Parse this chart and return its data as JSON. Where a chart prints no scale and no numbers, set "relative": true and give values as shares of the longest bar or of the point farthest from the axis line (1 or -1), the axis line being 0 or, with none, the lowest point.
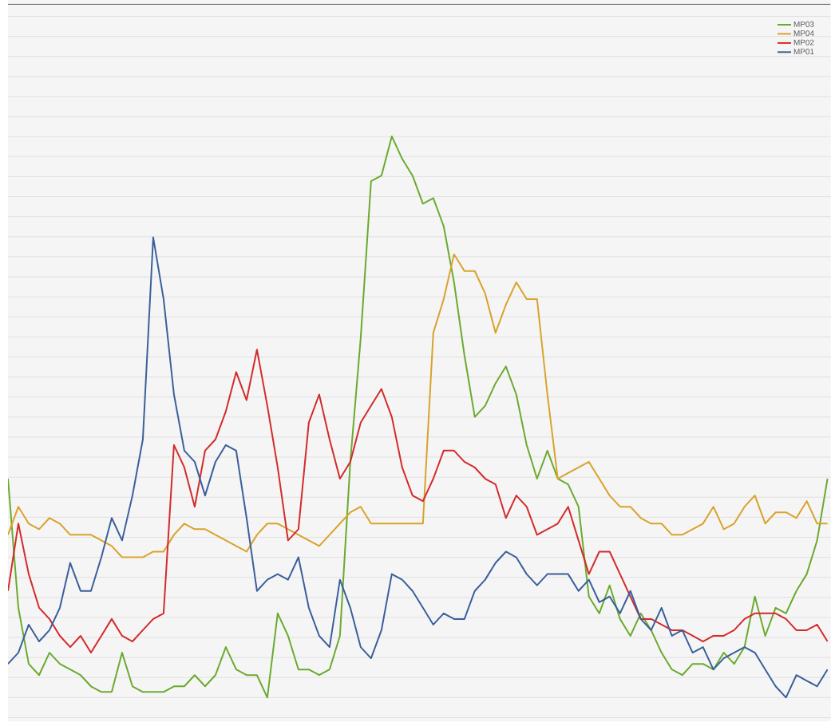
{
  "chart_data": {
    "type": "line",
    "relative": true,
    "grid": "y",
    "legend": "top right",
    "marker": "none",
    "line_style": "solid",
    "categories": [
      null,
      null,
      null,
      null,
      null,
      null,
      null,
      null,
      null,
      null,
      null,
      null,
      null,
      null,
      null,
      null,
      null,
      null,
      null,
      null,
      null,
      null,
      null,
      null,
      null,
      null,
      null,
      null,
      null,
      null,
      null,
      null,
      null,
      null,
      null,
      null,
      null,
      null,
      null,
      null,
      null,
      null,
      null,
      null,
      null,
      null,
      null,
      null,
      null,
      null,
      null,
      null,
      null,
      null,
      null,
      null,
      null,
      null,
      null,
      null,
      null,
      null,
      null,
      null,
      null,
      null,
      null,
      null,
      null,
      null,
      null,
      null,
      null,
      null,
      null,
      null,
      null,
      null,
      null,
      null
    ],
    "series": [
      {
        "name": "MP03",
        "color": "#6aaa2e",
        "values": [
          0.39,
          0.16,
          0.06,
          0.04,
          0.08,
          0.06,
          0.05,
          0.04,
          0.02,
          0.01,
          0.01,
          0.08,
          0.02,
          0.01,
          0.01,
          0.01,
          0.02,
          0.02,
          0.04,
          0.02,
          0.04,
          0.09,
          0.05,
          0.04,
          0.04,
          0,
          0.15,
          0.11,
          0.05,
          0.05,
          0.04,
          0.05,
          0.11,
          0.42,
          0.64,
          0.92,
          0.93,
          1,
          0.96,
          0.93,
          0.88,
          0.89,
          0.84,
          0.74,
          0.61,
          0.5,
          0.52,
          0.56,
          0.59,
          0.54,
          0.45,
          0.39,
          0.44,
          0.39,
          0.38,
          0.34,
          0.18,
          0.15,
          0.2,
          0.14,
          0.11,
          0.15,
          0.12,
          0.08,
          0.05,
          0.04,
          0.06,
          0.06,
          0.05,
          0.08,
          0.06,
          0.09,
          0.18,
          0.11,
          0.16,
          0.15,
          0.19,
          0.22,
          0.28,
          0.39
        ]
      },
      {
        "name": "MP04",
        "color": "#d9a22b",
        "values": [
          0.29,
          0.34,
          0.31,
          0.3,
          0.32,
          0.31,
          0.29,
          0.29,
          0.29,
          0.28,
          0.27,
          0.25,
          0.25,
          0.25,
          0.26,
          0.26,
          0.29,
          0.31,
          0.3,
          0.3,
          0.29,
          0.28,
          0.27,
          0.26,
          0.29,
          0.31,
          0.31,
          0.3,
          0.29,
          0.28,
          0.27,
          0.29,
          0.31,
          0.33,
          0.34,
          0.31,
          0.31,
          0.31,
          0.31,
          0.31,
          0.31,
          0.65,
          0.71,
          0.79,
          0.76,
          0.76,
          0.72,
          0.65,
          0.7,
          0.74,
          0.71,
          0.71,
          0.54,
          0.39,
          0.4,
          0.41,
          0.42,
          0.39,
          0.36,
          0.34,
          0.34,
          0.32,
          0.31,
          0.31,
          0.29,
          0.29,
          0.3,
          0.31,
          0.34,
          0.3,
          0.31,
          0.34,
          0.36,
          0.31,
          0.33,
          0.33,
          0.32,
          0.35,
          0.31,
          0.31
        ]
      },
      {
        "name": "MP02",
        "color": "#d42a2a",
        "values": [
          0.19,
          0.31,
          0.22,
          0.16,
          0.14,
          0.11,
          0.09,
          0.11,
          0.08,
          0.11,
          0.14,
          0.11,
          0.1,
          0.12,
          0.14,
          0.15,
          0.45,
          0.41,
          0.34,
          0.44,
          0.46,
          0.51,
          0.58,
          0.53,
          0.62,
          0.52,
          0.41,
          0.28,
          0.3,
          0.49,
          0.54,
          0.46,
          0.39,
          0.42,
          0.49,
          0.52,
          0.55,
          0.5,
          0.41,
          0.36,
          0.35,
          0.39,
          0.44,
          0.44,
          0.42,
          0.41,
          0.39,
          0.38,
          0.32,
          0.36,
          0.34,
          0.29,
          0.3,
          0.31,
          0.34,
          0.28,
          0.22,
          0.26,
          0.26,
          0.22,
          0.18,
          0.14,
          0.14,
          0.13,
          0.12,
          0.12,
          0.11,
          0.1,
          0.11,
          0.11,
          0.12,
          0.14,
          0.15,
          0.15,
          0.15,
          0.14,
          0.12,
          0.12,
          0.13,
          0.1
        ]
      },
      {
        "name": "MP01",
        "color": "#3a5f9a",
        "values": [
          0.06,
          0.08,
          0.13,
          0.1,
          0.12,
          0.16,
          0.24,
          0.19,
          0.19,
          0.25,
          0.32,
          0.28,
          0.36,
          0.46,
          0.82,
          0.71,
          0.54,
          0.44,
          0.42,
          0.36,
          0.42,
          0.45,
          0.44,
          0.32,
          0.19,
          0.21,
          0.22,
          0.21,
          0.25,
          0.16,
          0.11,
          0.09,
          0.21,
          0.16,
          0.09,
          0.07,
          0.12,
          0.22,
          0.21,
          0.19,
          0.16,
          0.13,
          0.15,
          0.14,
          0.14,
          0.19,
          0.21,
          0.24,
          0.26,
          0.25,
          0.22,
          0.2,
          0.22,
          0.22,
          0.22,
          0.19,
          0.21,
          0.17,
          0.18,
          0.15,
          0.19,
          0.14,
          0.12,
          0.16,
          0.11,
          0.12,
          0.08,
          0.09,
          0.05,
          0.07,
          0.08,
          0.09,
          0.08,
          0.05,
          0.02,
          0,
          0.04,
          0.03,
          0.02,
          0.05
        ]
      }
    ]
  }
}
